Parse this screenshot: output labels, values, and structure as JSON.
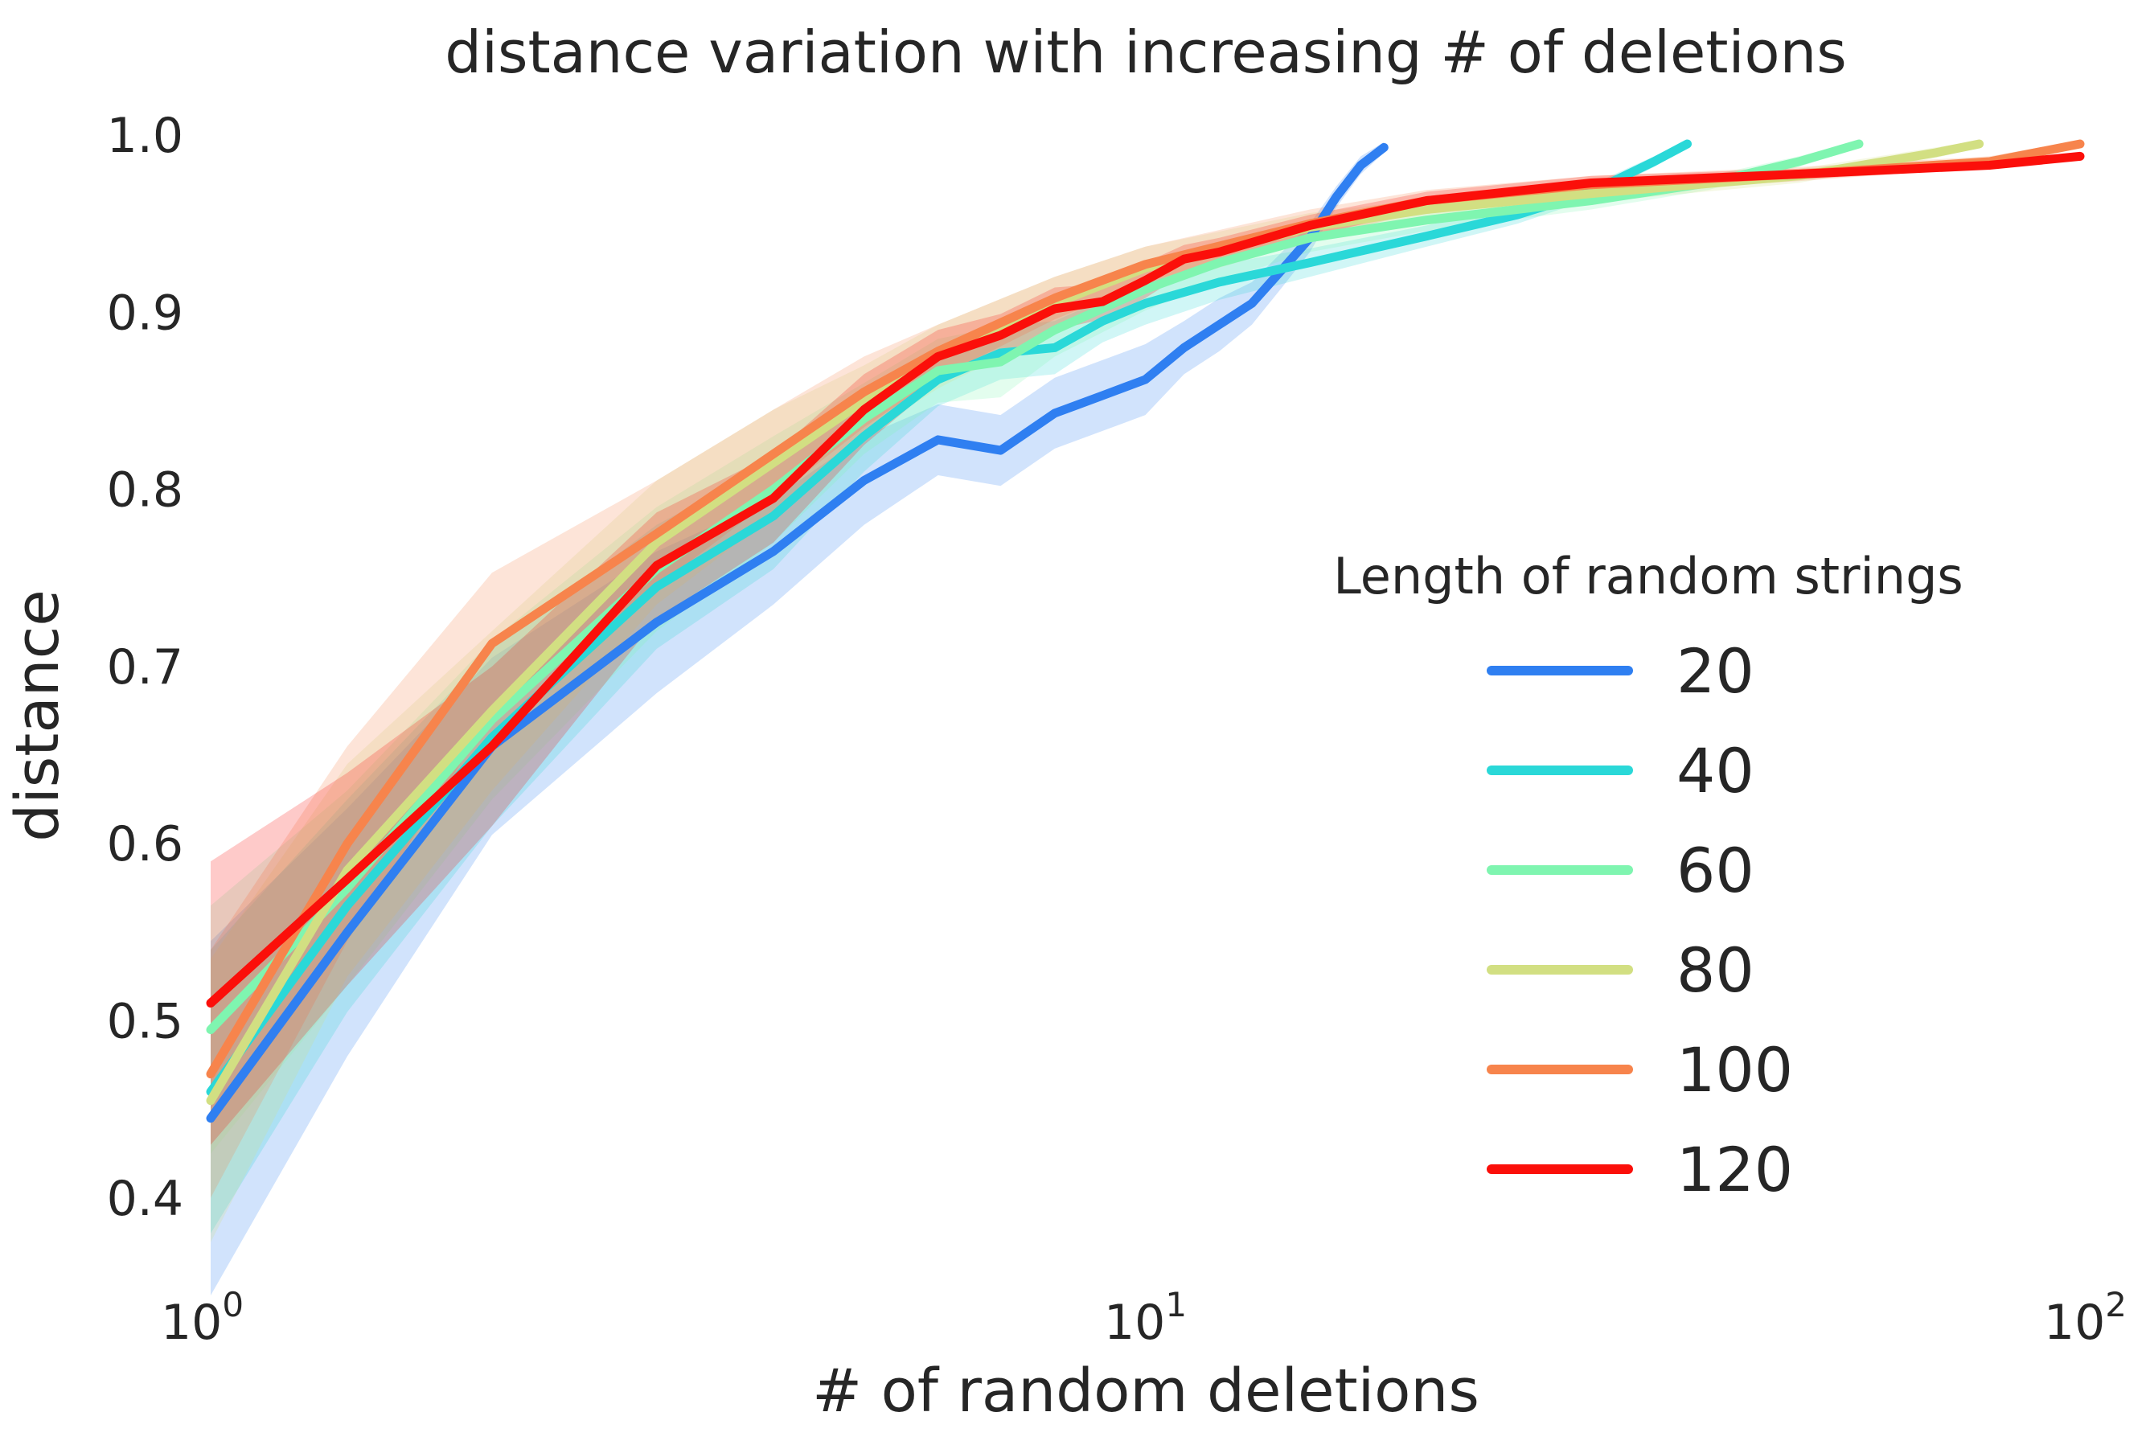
{
  "chart_data": {
    "type": "line",
    "title": "distance variation with increasing # of deletions",
    "xlabel": "# of random deletions",
    "ylabel": "distance",
    "xscale": "log",
    "xlim": [
      1,
      100
    ],
    "ylim": [
      0.35,
      1.0
    ],
    "x_ticks": [
      {
        "value": 1,
        "base": "10",
        "exp": "0"
      },
      {
        "value": 10,
        "base": "10",
        "exp": "1"
      },
      {
        "value": 100,
        "base": "10",
        "exp": "2"
      }
    ],
    "y_ticks": [
      {
        "value": 0.4,
        "label": "0.4"
      },
      {
        "value": 0.5,
        "label": "0.5"
      },
      {
        "value": 0.6,
        "label": "0.6"
      },
      {
        "value": 0.7,
        "label": "0.7"
      },
      {
        "value": 0.8,
        "label": "0.8"
      },
      {
        "value": 0.9,
        "label": "0.9"
      },
      {
        "value": 1.0,
        "label": "1.0"
      }
    ],
    "grid": false,
    "legend": {
      "title": "Length of random strings",
      "placement": "right"
    },
    "series": [
      {
        "name": "20",
        "color": "#2f7ff1",
        "x": [
          1,
          1.4,
          2,
          3,
          4,
          5,
          6,
          7,
          8,
          9,
          10,
          11,
          12,
          13,
          14,
          15,
          16,
          17,
          18
        ],
        "y": [
          0.445,
          0.55,
          0.655,
          0.725,
          0.765,
          0.805,
          0.828,
          0.822,
          0.843,
          0.853,
          0.862,
          0.88,
          0.893,
          0.905,
          0.924,
          0.942,
          0.965,
          0.983,
          0.993
        ],
        "band": [
          0.1,
          0.07,
          0.05,
          0.04,
          0.03,
          0.025,
          0.02,
          0.02,
          0.02,
          0.02,
          0.02,
          0.015,
          0.015,
          0.012,
          0.01,
          0.008,
          0.006,
          0.005,
          0.003
        ]
      },
      {
        "name": "40",
        "color": "#2ad8d8",
        "x": [
          1,
          1.4,
          2,
          3,
          4,
          5,
          6,
          7,
          8,
          9,
          10,
          12,
          15,
          20,
          25,
          30,
          35,
          38
        ],
        "y": [
          0.46,
          0.565,
          0.66,
          0.745,
          0.785,
          0.83,
          0.862,
          0.877,
          0.88,
          0.895,
          0.905,
          0.917,
          0.928,
          0.943,
          0.955,
          0.968,
          0.985,
          0.995
        ],
        "band": [
          0.08,
          0.06,
          0.05,
          0.035,
          0.03,
          0.02,
          0.015,
          0.015,
          0.015,
          0.012,
          0.012,
          0.01,
          0.008,
          0.006,
          0.005,
          0.004,
          0.003,
          0.002
        ]
      },
      {
        "name": "60",
        "color": "#7ff5b0",
        "x": [
          1,
          1.4,
          2,
          3,
          4,
          5,
          6,
          7,
          8,
          10,
          12,
          15,
          20,
          30,
          40,
          50,
          58
        ],
        "y": [
          0.495,
          0.575,
          0.67,
          0.755,
          0.8,
          0.84,
          0.867,
          0.872,
          0.89,
          0.913,
          0.928,
          0.942,
          0.952,
          0.963,
          0.973,
          0.985,
          0.995
        ],
        "band": [
          0.07,
          0.055,
          0.045,
          0.035,
          0.03,
          0.02,
          0.018,
          0.02,
          0.015,
          0.012,
          0.01,
          0.008,
          0.006,
          0.005,
          0.004,
          0.003,
          0.002
        ]
      },
      {
        "name": "80",
        "color": "#d2df82",
        "x": [
          1,
          1.4,
          2,
          3,
          4,
          5,
          6,
          8,
          10,
          15,
          20,
          30,
          50,
          70,
          78
        ],
        "y": [
          0.455,
          0.585,
          0.675,
          0.77,
          0.815,
          0.85,
          0.875,
          0.905,
          0.925,
          0.948,
          0.958,
          0.967,
          0.977,
          0.99,
          0.995
        ],
        "band": [
          0.08,
          0.06,
          0.045,
          0.035,
          0.03,
          0.02,
          0.018,
          0.015,
          0.012,
          0.008,
          0.006,
          0.005,
          0.004,
          0.003,
          0.002
        ]
      },
      {
        "name": "100",
        "color": "#f7844c",
        "x": [
          1,
          1.4,
          2,
          3,
          4,
          5,
          6,
          8,
          10,
          15,
          20,
          30,
          50,
          80,
          100
        ],
        "y": [
          0.47,
          0.6,
          0.713,
          0.775,
          0.82,
          0.855,
          0.878,
          0.908,
          0.927,
          0.95,
          0.963,
          0.972,
          0.978,
          0.985,
          0.995
        ],
        "band": [
          0.07,
          0.055,
          0.04,
          0.03,
          0.025,
          0.02,
          0.015,
          0.012,
          0.01,
          0.008,
          0.006,
          0.005,
          0.004,
          0.003,
          0.002
        ]
      },
      {
        "name": "120",
        "color": "#fb0f0a",
        "x": [
          1,
          1.4,
          2,
          3,
          4,
          5,
          6,
          7,
          8,
          9,
          10,
          11,
          12,
          15,
          20,
          30,
          50,
          80,
          100
        ],
        "y": [
          0.51,
          0.58,
          0.655,
          0.757,
          0.795,
          0.845,
          0.875,
          0.887,
          0.902,
          0.906,
          0.918,
          0.93,
          0.934,
          0.949,
          0.963,
          0.973,
          0.978,
          0.983,
          0.988
        ],
        "band": [
          0.08,
          0.06,
          0.045,
          0.03,
          0.025,
          0.02,
          0.015,
          0.012,
          0.012,
          0.01,
          0.01,
          0.008,
          0.008,
          0.006,
          0.005,
          0.004,
          0.003,
          0.002,
          0.002
        ]
      }
    ]
  }
}
